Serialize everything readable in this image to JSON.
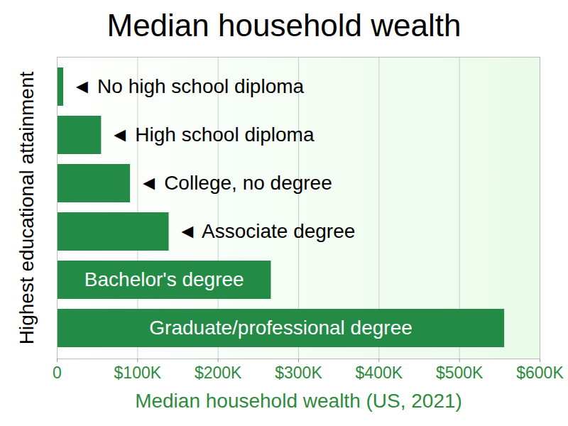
{
  "chart_data": {
    "type": "bar",
    "title": "Median household wealth",
    "xlabel": "Median household wealth (US, 2021)",
    "ylabel": "Highest educational attainment",
    "orientation": "horizontal",
    "categories": [
      "◄ No high school diploma",
      "◄ High school diploma",
      "◄ College, no degree",
      "◄ Associate degree",
      "Bachelor's degree",
      "Graduate/professional degree"
    ],
    "values": [
      8000,
      55000,
      91000,
      139000,
      266000,
      556000
    ],
    "color": "#238b45",
    "xlim": [
      0,
      600000
    ],
    "xticks": [
      0,
      {
        "value": 100000,
        "label": "$100K"
      },
      {
        "value": 200000,
        "label": "$200K"
      },
      {
        "value": 300000,
        "label": "$300K"
      },
      {
        "value": 400000,
        "label": "$400K"
      },
      {
        "value": 500000,
        "label": "$500K"
      },
      {
        "value": 600000,
        "label": "$600K"
      }
    ],
    "grid": true,
    "tick_labels": "x"
  }
}
